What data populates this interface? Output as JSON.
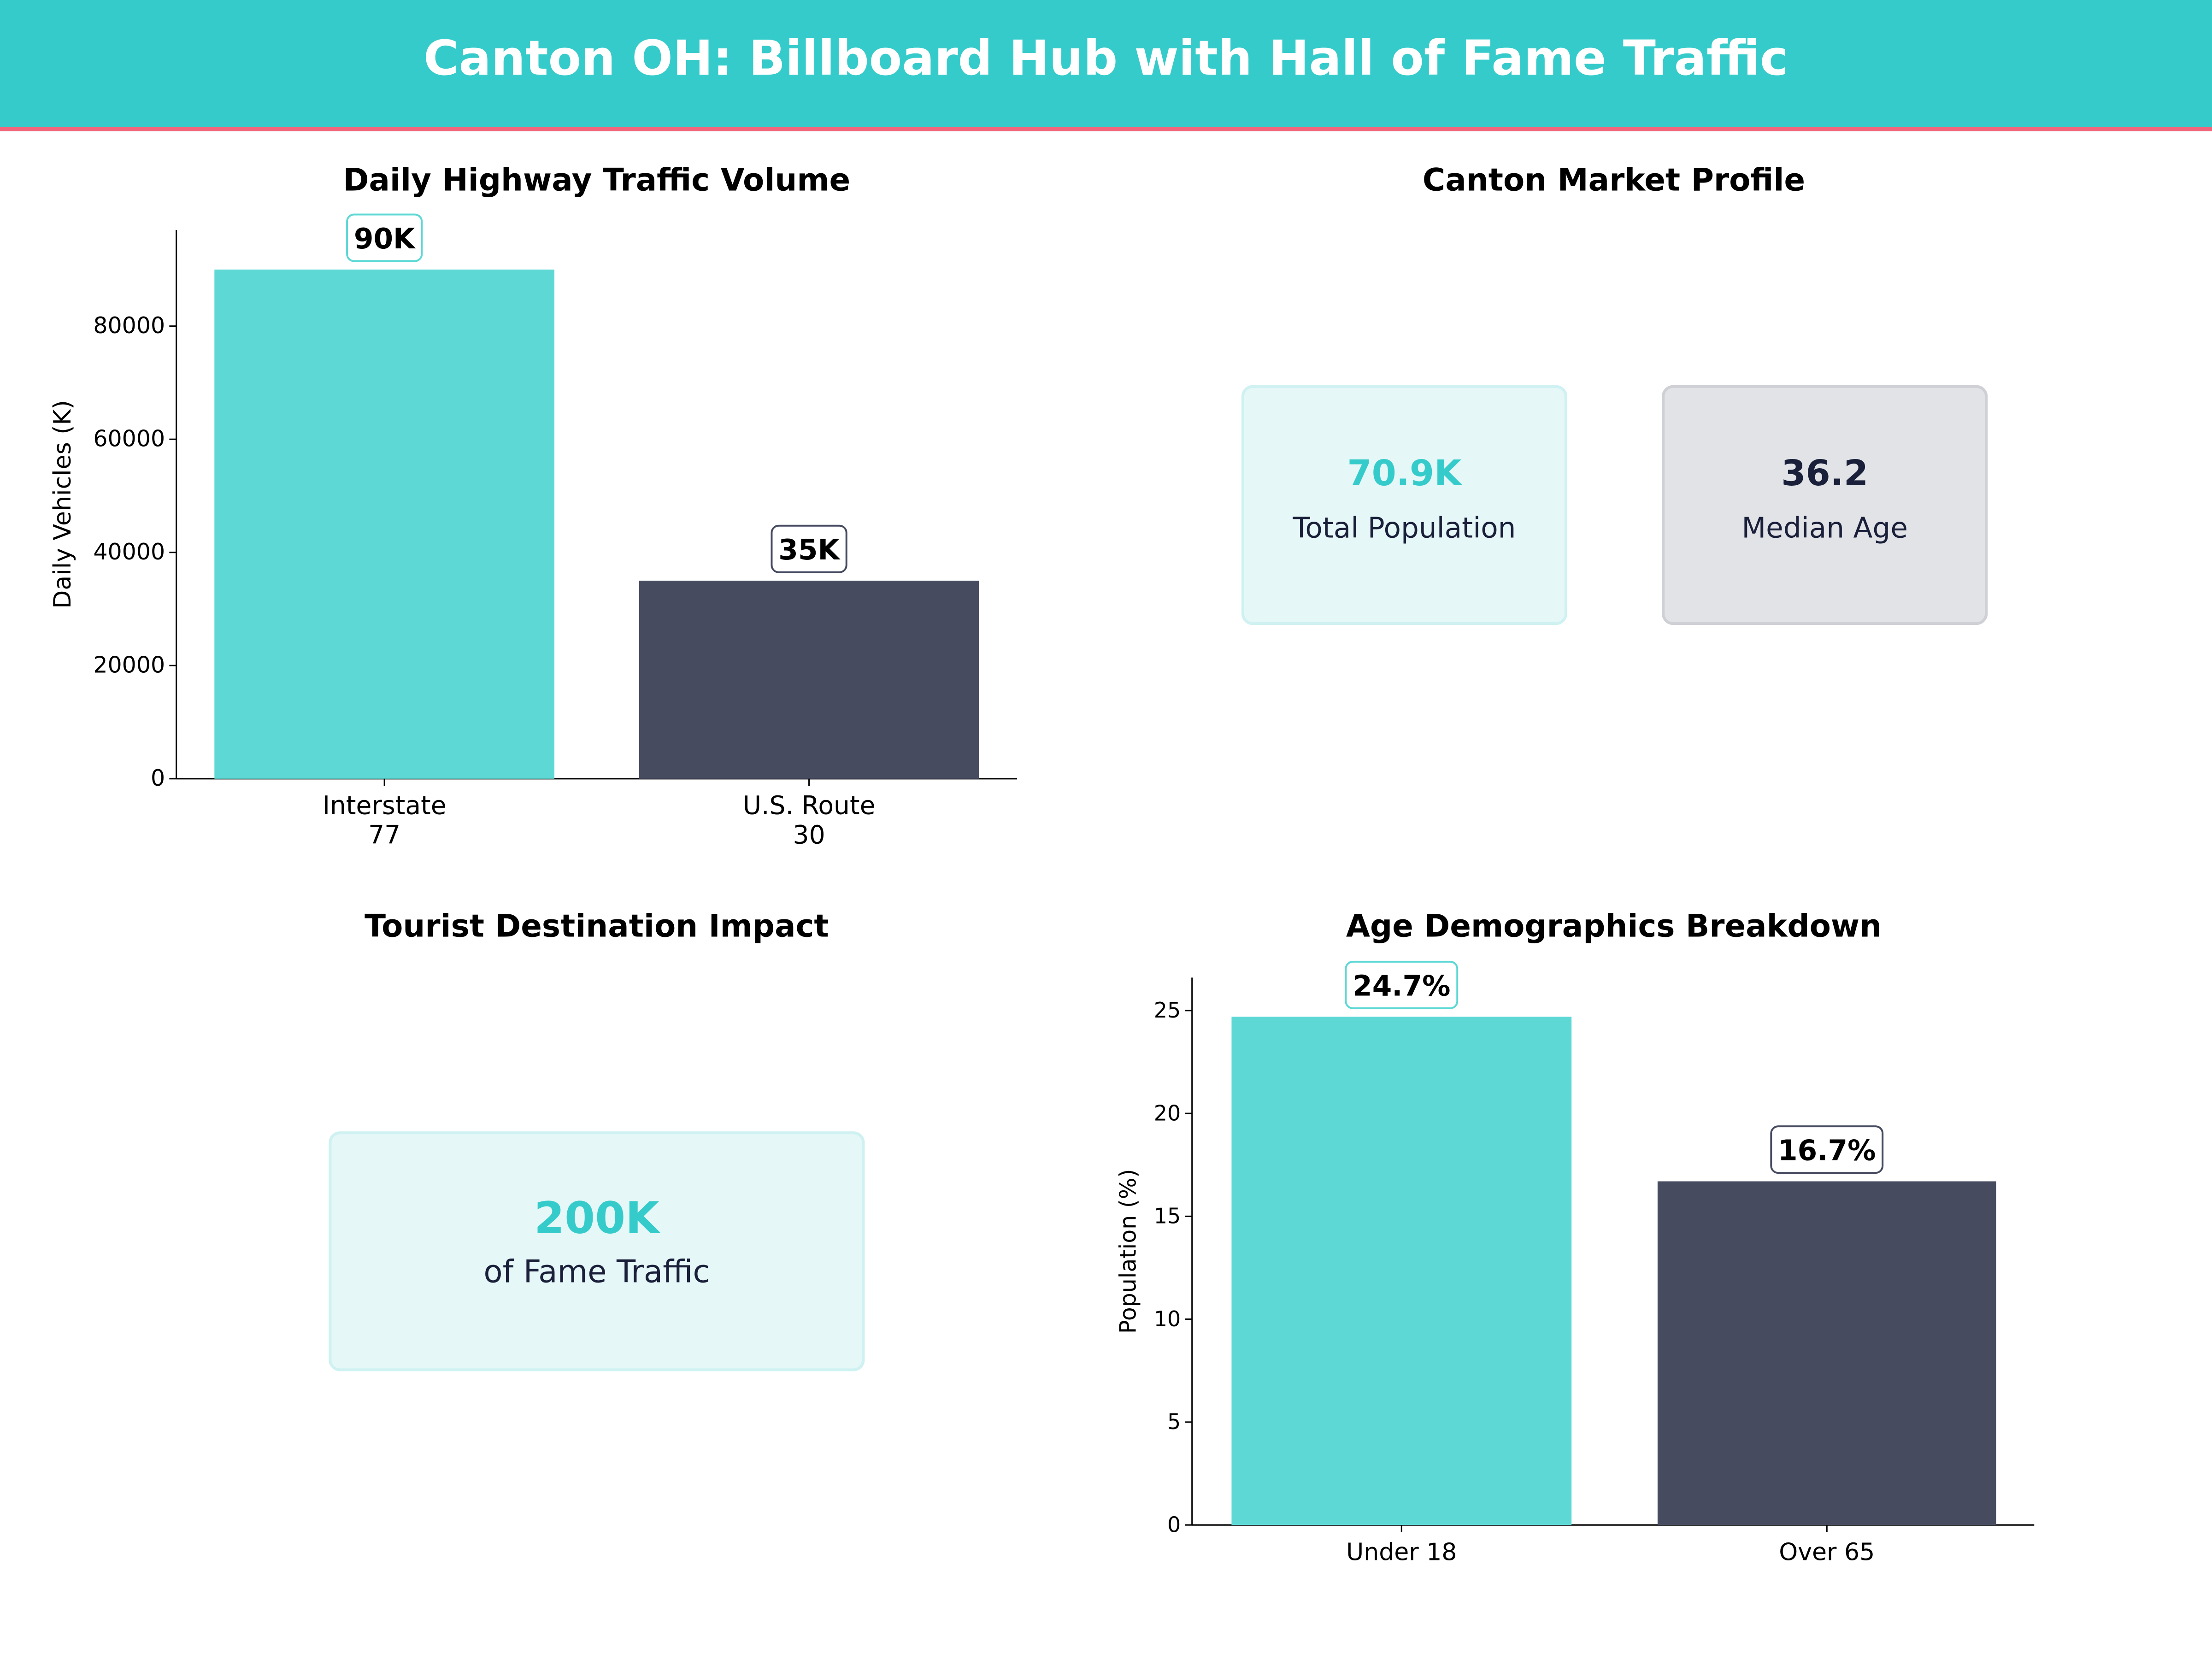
{
  "header": {
    "title": "Canton OH: Billboard Hub with Hall of Fame Traffic"
  },
  "colors": {
    "teal": "#5DD8D5",
    "dark": "#464B60",
    "header": "#36CBCB",
    "accent_line": "#F0677D",
    "value_teal": "#36CBCB",
    "value_dark": "#1A1F3A"
  },
  "market_profile": {
    "title": "Canton Market Profile",
    "cards": [
      {
        "value": "70.9K",
        "label": "Total Population"
      },
      {
        "value": "36.2",
        "label": "Median Age"
      }
    ]
  },
  "tourist": {
    "title": "Tourist Destination Impact",
    "value": "200K",
    "label": "of Fame Traffic"
  },
  "chart_data": [
    {
      "type": "bar",
      "title": "Daily Highway Traffic Volume",
      "xlabel": "",
      "ylabel": "Daily Vehicles (K)",
      "categories": [
        "Interstate\n77",
        "U.S. Route\n30"
      ],
      "values": [
        90000,
        35000
      ],
      "data_labels": [
        "90K",
        "35K"
      ],
      "ylim": [
        0,
        97000
      ],
      "yticks": [
        0,
        20000,
        40000,
        60000,
        80000
      ],
      "grid": false
    },
    {
      "type": "bar",
      "title": "Age Demographics Breakdown",
      "xlabel": "",
      "ylabel": "Population (%)",
      "categories": [
        "Under 18",
        "Over 65"
      ],
      "values": [
        24.7,
        16.7
      ],
      "data_labels": [
        "24.7%",
        "16.7%"
      ],
      "ylim": [
        0,
        26.6
      ],
      "yticks": [
        0,
        5,
        10,
        15,
        20,
        25
      ],
      "grid": false
    }
  ]
}
